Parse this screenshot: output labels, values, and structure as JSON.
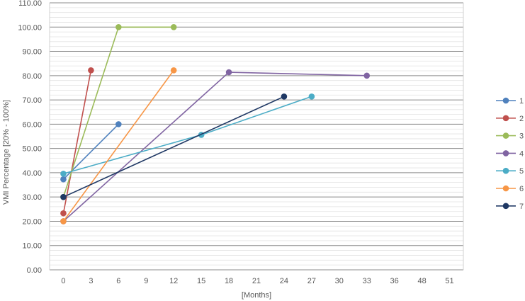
{
  "chart_data": {
    "type": "line",
    "title": "",
    "xlabel": "[Months]",
    "ylabel": "VMI Percentage [20% - 100%]",
    "categories": [
      "0",
      "3",
      "6",
      "9",
      "12",
      "15",
      "18",
      "21",
      "24",
      "27",
      "30",
      "33",
      "36",
      "48",
      "51"
    ],
    "y_ticks": [
      "0.00",
      "10.00",
      "20.00",
      "30.00",
      "40.00",
      "50.00",
      "60.00",
      "70.00",
      "80.00",
      "90.00",
      "100.00",
      "110.00"
    ],
    "ylim": [
      0,
      110
    ],
    "grid": true,
    "legend_position": "right",
    "series": [
      {
        "name": "1",
        "color": "#4F81BD",
        "points": [
          {
            "x": "0",
            "y": 37.3
          },
          {
            "x": "6",
            "y": 60.0
          }
        ]
      },
      {
        "name": "2",
        "color": "#C0504D",
        "points": [
          {
            "x": "0",
            "y": 23.3
          },
          {
            "x": "3",
            "y": 82.2
          }
        ]
      },
      {
        "name": "3",
        "color": "#9BBB59",
        "points": [
          {
            "x": "0",
            "y": 30.0
          },
          {
            "x": "6",
            "y": 100.0
          },
          {
            "x": "12",
            "y": 100.0
          }
        ]
      },
      {
        "name": "4",
        "color": "#8064A2",
        "points": [
          {
            "x": "0",
            "y": 20.0
          },
          {
            "x": "18",
            "y": 81.4
          },
          {
            "x": "33",
            "y": 80.0
          }
        ]
      },
      {
        "name": "5",
        "color": "#4BACC6",
        "points": [
          {
            "x": "0",
            "y": 39.6
          },
          {
            "x": "15",
            "y": 55.6
          },
          {
            "x": "27",
            "y": 71.4
          }
        ]
      },
      {
        "name": "6",
        "color": "#F79646",
        "points": [
          {
            "x": "0",
            "y": 20.0
          },
          {
            "x": "12",
            "y": 82.2
          }
        ]
      },
      {
        "name": "7",
        "color": "#1F3864",
        "points": [
          {
            "x": "0",
            "y": 30.0
          },
          {
            "x": "24",
            "y": 71.4
          }
        ]
      }
    ]
  }
}
